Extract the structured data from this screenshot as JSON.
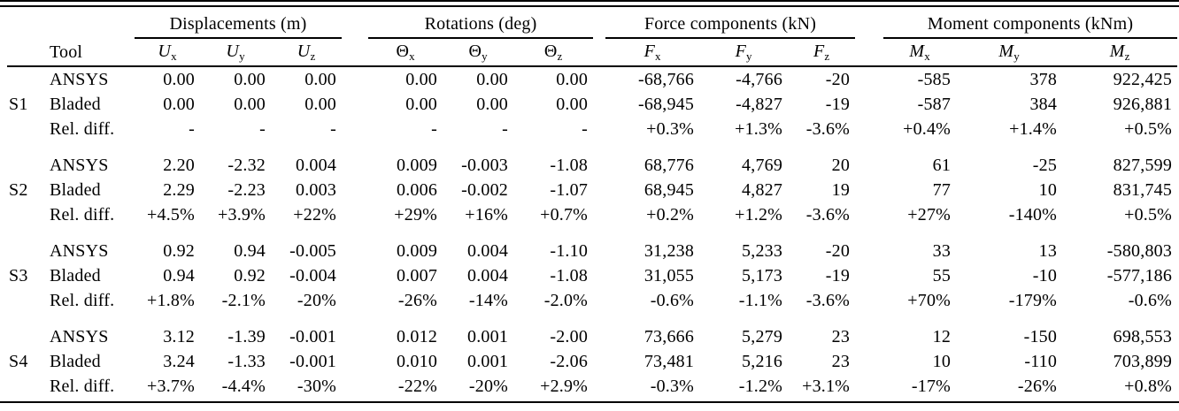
{
  "page": {
    "background": "#ffffff",
    "text_color": "#000000"
  },
  "table": {
    "tool_header": "Tool",
    "column_groups": [
      {
        "title": "Displacements (m)",
        "columns": [
          {
            "symbol": "U",
            "sub": "x"
          },
          {
            "symbol": "U",
            "sub": "y"
          },
          {
            "symbol": "U",
            "sub": "z"
          }
        ]
      },
      {
        "title": "Rotations (deg)",
        "columns": [
          {
            "symbol": "Θ",
            "sub": "x"
          },
          {
            "symbol": "Θ",
            "sub": "y"
          },
          {
            "symbol": "Θ",
            "sub": "z"
          }
        ]
      },
      {
        "title": "Force components (kN)",
        "columns": [
          {
            "symbol": "F",
            "sub": "x"
          },
          {
            "symbol": "F",
            "sub": "y"
          },
          {
            "symbol": "F",
            "sub": "z"
          }
        ]
      },
      {
        "title": "Moment components (kNm)",
        "columns": [
          {
            "symbol": "M",
            "sub": "x"
          },
          {
            "symbol": "M",
            "sub": "y"
          },
          {
            "symbol": "M",
            "sub": "z"
          }
        ]
      }
    ],
    "sections": [
      {
        "station": "S1",
        "rows": [
          {
            "tool": "ANSYS",
            "values": [
              "0.00",
              "0.00",
              "0.00",
              "0.00",
              "0.00",
              "0.00",
              "-68,766",
              "-4,766",
              "-20",
              "-585",
              "378",
              "922,425"
            ]
          },
          {
            "tool": "Bladed",
            "values": [
              "0.00",
              "0.00",
              "0.00",
              "0.00",
              "0.00",
              "0.00",
              "-68,945",
              "-4,827",
              "-19",
              "-587",
              "384",
              "926,881"
            ]
          },
          {
            "tool": "Rel. diff.",
            "values": [
              "-",
              "-",
              "-",
              "-",
              "-",
              "-",
              "+0.3%",
              "+1.3%",
              "-3.6%",
              "+0.4%",
              "+1.4%",
              "+0.5%"
            ]
          }
        ]
      },
      {
        "station": "S2",
        "rows": [
          {
            "tool": "ANSYS",
            "values": [
              "2.20",
              "-2.32",
              "0.004",
              "0.009",
              "-0.003",
              "-1.08",
              "68,776",
              "4,769",
              "20",
              "61",
              "-25",
              "827,599"
            ]
          },
          {
            "tool": "Bladed",
            "values": [
              "2.29",
              "-2.23",
              "0.003",
              "0.006",
              "-0.002",
              "-1.07",
              "68,945",
              "4,827",
              "19",
              "77",
              "10",
              "831,745"
            ]
          },
          {
            "tool": "Rel. diff.",
            "values": [
              "+4.5%",
              "+3.9%",
              "+22%",
              "+29%",
              "+16%",
              "+0.7%",
              "+0.2%",
              "+1.2%",
              "-3.6%",
              "+27%",
              "-140%",
              "+0.5%"
            ]
          }
        ]
      },
      {
        "station": "S3",
        "rows": [
          {
            "tool": "ANSYS",
            "values": [
              "0.92",
              "0.94",
              "-0.005",
              "0.009",
              "0.004",
              "-1.10",
              "31,238",
              "5,233",
              "-20",
              "33",
              "13",
              "-580,803"
            ]
          },
          {
            "tool": "Bladed",
            "values": [
              "0.94",
              "0.92",
              "-0.004",
              "0.007",
              "0.004",
              "-1.08",
              "31,055",
              "5,173",
              "-19",
              "55",
              "-10",
              "-577,186"
            ]
          },
          {
            "tool": "Rel. diff.",
            "values": [
              "+1.8%",
              "-2.1%",
              "-20%",
              "-26%",
              "-14%",
              "-2.0%",
              "-0.6%",
              "-1.1%",
              "-3.6%",
              "+70%",
              "-179%",
              "-0.6%"
            ]
          }
        ]
      },
      {
        "station": "S4",
        "rows": [
          {
            "tool": "ANSYS",
            "values": [
              "3.12",
              "-1.39",
              "-0.001",
              "0.012",
              "0.001",
              "-2.00",
              "73,666",
              "5,279",
              "23",
              "12",
              "-150",
              "698,553"
            ]
          },
          {
            "tool": "Bladed",
            "values": [
              "3.24",
              "-1.33",
              "-0.001",
              "0.010",
              "0.001",
              "-2.06",
              "73,481",
              "5,216",
              "23",
              "10",
              "-110",
              "703,899"
            ]
          },
          {
            "tool": "Rel. diff.",
            "values": [
              "+3.7%",
              "-4.4%",
              "-30%",
              "-22%",
              "-20%",
              "+2.9%",
              "-0.3%",
              "-1.2%",
              "+3.1%",
              "-17%",
              "-26%",
              "+0.8%"
            ]
          }
        ]
      }
    ]
  }
}
